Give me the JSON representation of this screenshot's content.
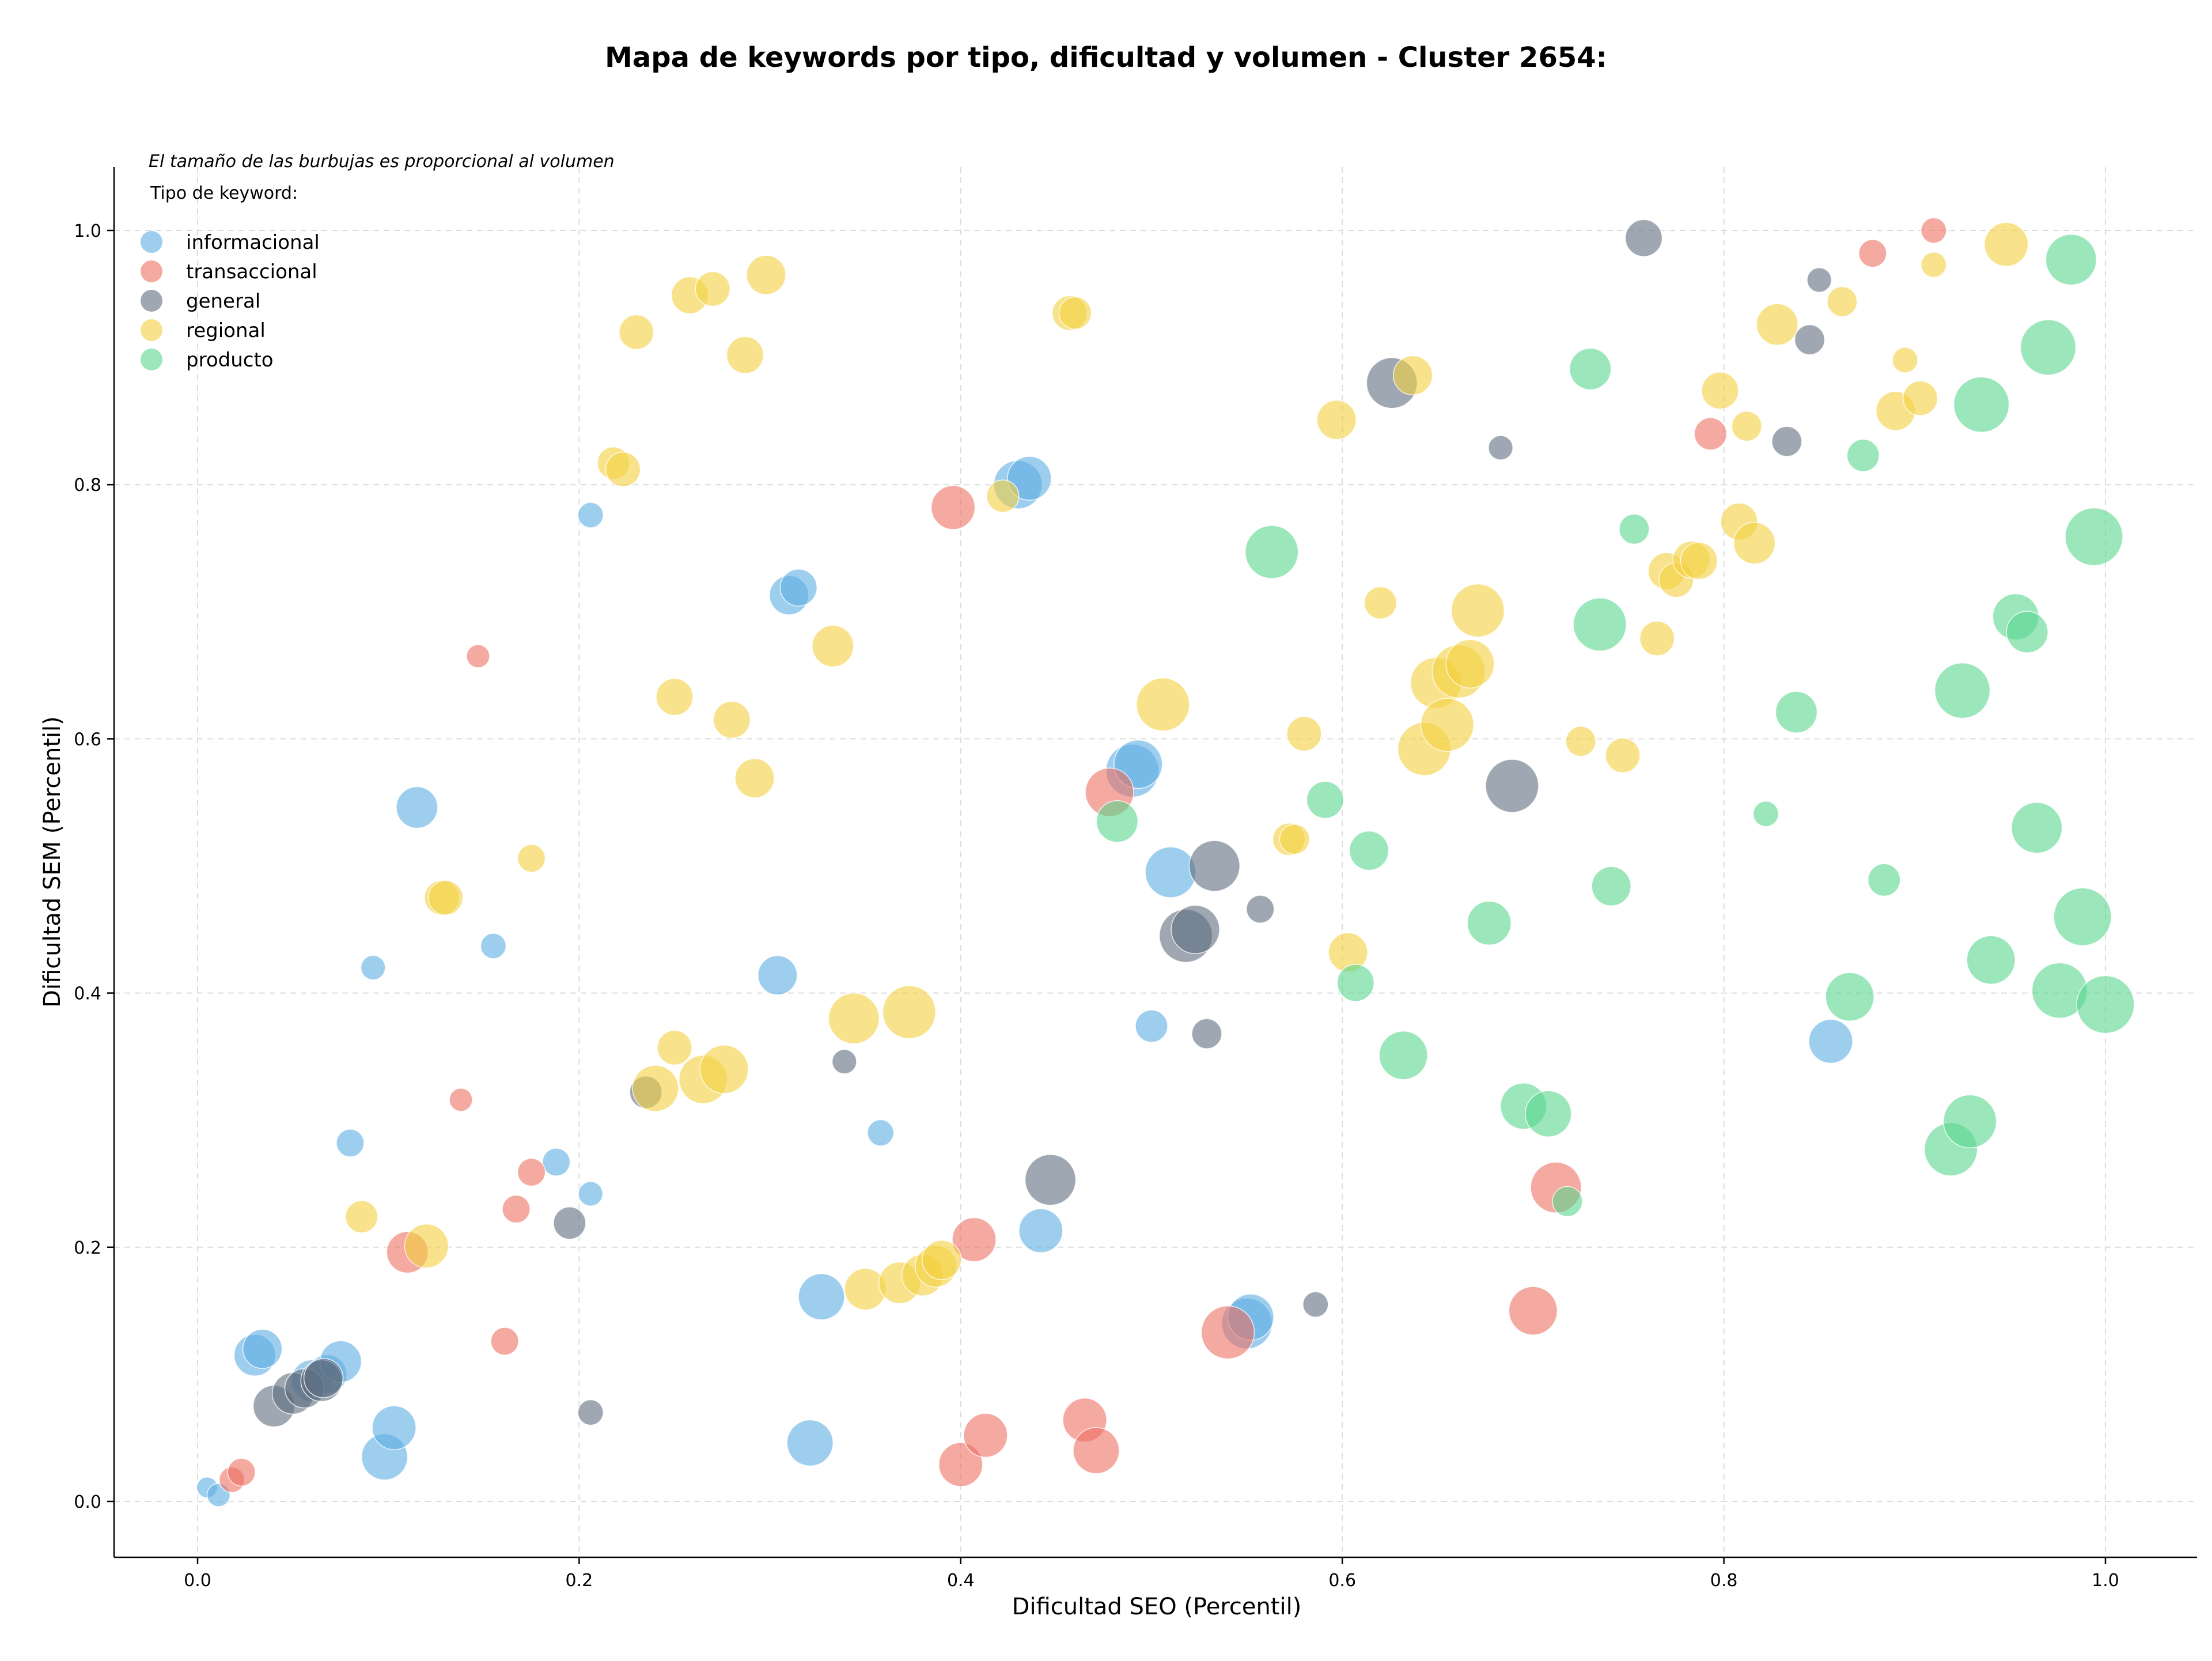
{
  "chart_data": {
    "type": "scatter",
    "title": "Mapa de keywords por tipo, dificultad y volumen - Cluster 2654:",
    "xlabel": "Dificultad SEO (Percentil)",
    "ylabel": "Dificultad SEM (Percentil)",
    "xlim": [
      -0.045,
      1.05
    ],
    "ylim": [
      -0.045,
      1.05
    ],
    "xticks": [
      0.0,
      0.2,
      0.4,
      0.6,
      0.8,
      1.0
    ],
    "yticks": [
      0.0,
      0.2,
      0.4,
      0.6,
      0.8,
      1.0
    ],
    "xtick_labels": [
      "0.0",
      "0.2",
      "0.4",
      "0.6",
      "0.8",
      "1.0"
    ],
    "ytick_labels": [
      "0.0",
      "0.2",
      "0.4",
      "0.6",
      "0.8",
      "1.0"
    ],
    "grid": true,
    "size_note": "El tamaño de las burbujas es proporcional al volumen",
    "legend_title": "Tipo de keyword:",
    "legend_position": "top-left",
    "series": [
      {
        "name": "informacional",
        "color": "#5dade2",
        "points": [
          [
            0.005,
            0.011,
            0.1
          ],
          [
            0.011,
            0.005,
            0.15
          ],
          [
            0.03,
            0.115,
            0.55
          ],
          [
            0.034,
            0.12,
            0.5
          ],
          [
            0.06,
            0.095,
            0.55
          ],
          [
            0.068,
            0.1,
            0.5
          ],
          [
            0.075,
            0.11,
            0.55
          ],
          [
            0.08,
            0.282,
            0.25
          ],
          [
            0.098,
            0.035,
            0.65
          ],
          [
            0.103,
            0.058,
            0.6
          ],
          [
            0.115,
            0.546,
            0.55
          ],
          [
            0.092,
            0.42,
            0.18
          ],
          [
            0.155,
            0.437,
            0.2
          ],
          [
            0.188,
            0.267,
            0.25
          ],
          [
            0.206,
            0.776,
            0.2
          ],
          [
            0.206,
            0.242,
            0.18
          ],
          [
            0.304,
            0.414,
            0.5
          ],
          [
            0.31,
            0.713,
            0.5
          ],
          [
            0.315,
            0.719,
            0.45
          ],
          [
            0.321,
            0.046,
            0.65
          ],
          [
            0.327,
            0.161,
            0.65
          ],
          [
            0.358,
            0.29,
            0.22
          ],
          [
            0.43,
            0.8,
            0.7
          ],
          [
            0.436,
            0.805,
            0.6
          ],
          [
            0.442,
            0.213,
            0.6
          ],
          [
            0.49,
            0.575,
            0.8
          ],
          [
            0.493,
            0.58,
            0.7
          ],
          [
            0.5,
            0.374,
            0.35
          ],
          [
            0.51,
            0.495,
            0.75
          ],
          [
            0.55,
            0.14,
            0.75
          ],
          [
            0.552,
            0.145,
            0.65
          ],
          [
            0.856,
            0.362,
            0.6
          ]
        ]
      },
      {
        "name": "transaccional",
        "color": "#ec7063",
        "points": [
          [
            0.018,
            0.017,
            0.2
          ],
          [
            0.023,
            0.023,
            0.25
          ],
          [
            0.11,
            0.196,
            0.55
          ],
          [
            0.138,
            0.316,
            0.15
          ],
          [
            0.147,
            0.665,
            0.15
          ],
          [
            0.161,
            0.126,
            0.25
          ],
          [
            0.167,
            0.23,
            0.25
          ],
          [
            0.175,
            0.259,
            0.25
          ],
          [
            0.396,
            0.782,
            0.6
          ],
          [
            0.4,
            0.029,
            0.6
          ],
          [
            0.407,
            0.206,
            0.6
          ],
          [
            0.413,
            0.052,
            0.6
          ],
          [
            0.465,
            0.064,
            0.6
          ],
          [
            0.471,
            0.04,
            0.65
          ],
          [
            0.478,
            0.558,
            0.7
          ],
          [
            0.54,
            0.133,
            0.8
          ],
          [
            0.7,
            0.15,
            0.7
          ],
          [
            0.712,
            0.247,
            0.75
          ],
          [
            0.793,
            0.84,
            0.35
          ],
          [
            0.878,
            0.982,
            0.25
          ],
          [
            0.91,
            1.0,
            0.2
          ]
        ]
      },
      {
        "name": "general",
        "color": "#5d6d7e",
        "points": [
          [
            0.04,
            0.075,
            0.55
          ],
          [
            0.05,
            0.085,
            0.55
          ],
          [
            0.056,
            0.089,
            0.5
          ],
          [
            0.065,
            0.095,
            0.55
          ],
          [
            0.066,
            0.097,
            0.5
          ],
          [
            0.195,
            0.219,
            0.35
          ],
          [
            0.206,
            0.07,
            0.2
          ],
          [
            0.235,
            0.322,
            0.35
          ],
          [
            0.339,
            0.346,
            0.18
          ],
          [
            0.447,
            0.253,
            0.75
          ],
          [
            0.518,
            0.445,
            0.8
          ],
          [
            0.523,
            0.45,
            0.7
          ],
          [
            0.533,
            0.5,
            0.75
          ],
          [
            0.529,
            0.368,
            0.3
          ],
          [
            0.557,
            0.466,
            0.25
          ],
          [
            0.586,
            0.155,
            0.2
          ],
          [
            0.626,
            0.88,
            0.75
          ],
          [
            0.683,
            0.829,
            0.18
          ],
          [
            0.689,
            0.563,
            0.8
          ],
          [
            0.758,
            0.994,
            0.45
          ],
          [
            0.833,
            0.834,
            0.3
          ],
          [
            0.845,
            0.914,
            0.3
          ],
          [
            0.85,
            0.961,
            0.18
          ]
        ]
      },
      {
        "name": "regional",
        "color": "#f4d03f",
        "points": [
          [
            0.086,
            0.224,
            0.35
          ],
          [
            0.12,
            0.201,
            0.6
          ],
          [
            0.128,
            0.475,
            0.4
          ],
          [
            0.13,
            0.475,
            0.4
          ],
          [
            0.175,
            0.506,
            0.25
          ],
          [
            0.218,
            0.817,
            0.35
          ],
          [
            0.223,
            0.812,
            0.4
          ],
          [
            0.23,
            0.92,
            0.4
          ],
          [
            0.24,
            0.325,
            0.65
          ],
          [
            0.25,
            0.357,
            0.4
          ],
          [
            0.25,
            0.633,
            0.45
          ],
          [
            0.258,
            0.949,
            0.45
          ],
          [
            0.265,
            0.332,
            0.7
          ],
          [
            0.27,
            0.954,
            0.4
          ],
          [
            0.276,
            0.34,
            0.7
          ],
          [
            0.28,
            0.615,
            0.45
          ],
          [
            0.287,
            0.902,
            0.45
          ],
          [
            0.292,
            0.569,
            0.5
          ],
          [
            0.298,
            0.965,
            0.5
          ],
          [
            0.333,
            0.673,
            0.55
          ],
          [
            0.344,
            0.38,
            0.75
          ],
          [
            0.35,
            0.167,
            0.55
          ],
          [
            0.368,
            0.172,
            0.55
          ],
          [
            0.373,
            0.385,
            0.8
          ],
          [
            0.38,
            0.178,
            0.55
          ],
          [
            0.387,
            0.185,
            0.55
          ],
          [
            0.39,
            0.19,
            0.5
          ],
          [
            0.422,
            0.791,
            0.35
          ],
          [
            0.457,
            0.935,
            0.4
          ],
          [
            0.46,
            0.935,
            0.35
          ],
          [
            0.506,
            0.627,
            0.8
          ],
          [
            0.572,
            0.521,
            0.35
          ],
          [
            0.575,
            0.521,
            0.3
          ],
          [
            0.58,
            0.604,
            0.4
          ],
          [
            0.597,
            0.851,
            0.5
          ],
          [
            0.603,
            0.432,
            0.5
          ],
          [
            0.62,
            0.707,
            0.35
          ],
          [
            0.637,
            0.886,
            0.5
          ],
          [
            0.643,
            0.592,
            0.8
          ],
          [
            0.649,
            0.644,
            0.75
          ],
          [
            0.655,
            0.611,
            0.8
          ],
          [
            0.661,
            0.653,
            0.8
          ],
          [
            0.667,
            0.659,
            0.7
          ],
          [
            0.671,
            0.701,
            0.8
          ],
          [
            0.725,
            0.598,
            0.3
          ],
          [
            0.747,
            0.587,
            0.4
          ],
          [
            0.765,
            0.679,
            0.4
          ],
          [
            0.77,
            0.732,
            0.45
          ],
          [
            0.775,
            0.725,
            0.4
          ],
          [
            0.783,
            0.741,
            0.45
          ],
          [
            0.787,
            0.74,
            0.45
          ],
          [
            0.798,
            0.874,
            0.45
          ],
          [
            0.808,
            0.771,
            0.45
          ],
          [
            0.812,
            0.846,
            0.3
          ],
          [
            0.816,
            0.754,
            0.55
          ],
          [
            0.828,
            0.926,
            0.55
          ],
          [
            0.862,
            0.944,
            0.3
          ],
          [
            0.89,
            0.858,
            0.5
          ],
          [
            0.895,
            0.898,
            0.2
          ],
          [
            0.903,
            0.868,
            0.4
          ],
          [
            0.91,
            0.973,
            0.2
          ],
          [
            0.948,
            0.989,
            0.6
          ]
        ]
      },
      {
        "name": "producto",
        "color": "#58d68d",
        "points": [
          [
            0.482,
            0.535,
            0.55
          ],
          [
            0.563,
            0.747,
            0.8
          ],
          [
            0.591,
            0.552,
            0.45
          ],
          [
            0.607,
            0.408,
            0.45
          ],
          [
            0.614,
            0.512,
            0.5
          ],
          [
            0.632,
            0.351,
            0.7
          ],
          [
            0.677,
            0.455,
            0.6
          ],
          [
            0.695,
            0.311,
            0.65
          ],
          [
            0.708,
            0.305,
            0.65
          ],
          [
            0.718,
            0.236,
            0.3
          ],
          [
            0.73,
            0.891,
            0.55
          ],
          [
            0.735,
            0.69,
            0.8
          ],
          [
            0.741,
            0.484,
            0.5
          ],
          [
            0.753,
            0.765,
            0.3
          ],
          [
            0.822,
            0.541,
            0.2
          ],
          [
            0.838,
            0.621,
            0.55
          ],
          [
            0.866,
            0.397,
            0.7
          ],
          [
            0.873,
            0.823,
            0.35
          ],
          [
            0.884,
            0.489,
            0.35
          ],
          [
            0.919,
            0.277,
            0.8
          ],
          [
            0.925,
            0.638,
            0.85
          ],
          [
            0.929,
            0.299,
            0.8
          ],
          [
            0.935,
            0.863,
            0.85
          ],
          [
            0.94,
            0.426,
            0.7
          ],
          [
            0.953,
            0.696,
            0.65
          ],
          [
            0.959,
            0.684,
            0.55
          ],
          [
            0.964,
            0.53,
            0.75
          ],
          [
            0.97,
            0.908,
            0.85
          ],
          [
            0.976,
            0.402,
            0.85
          ],
          [
            0.982,
            0.977,
            0.75
          ],
          [
            0.988,
            0.46,
            0.9
          ],
          [
            0.994,
            0.759,
            0.9
          ],
          [
            1.0,
            0.391,
            0.9
          ]
        ]
      }
    ]
  }
}
